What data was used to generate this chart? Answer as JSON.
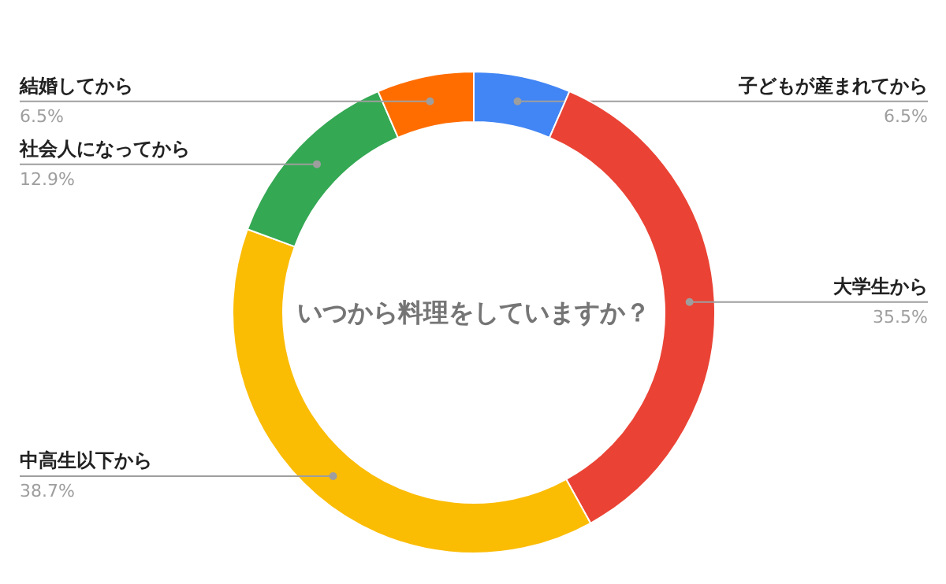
{
  "chart_data": {
    "type": "donut",
    "title": "いつから料理をしていますか？",
    "categories": [
      "子どもが産まれてから",
      "大学生から",
      "中高生以下から",
      "社会人になってから",
      "結婚してから"
    ],
    "values": [
      6.5,
      35.5,
      38.7,
      12.9,
      6.5
    ],
    "colors": [
      "#4285f4",
      "#ea4335",
      "#fbbc04",
      "#34a853",
      "#ff6d01"
    ],
    "value_labels": [
      "6.5%",
      "35.5%",
      "38.7%",
      "12.9%",
      "6.5%"
    ],
    "legend": false
  }
}
